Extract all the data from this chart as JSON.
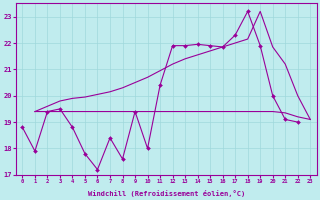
{
  "xlabel": "Windchill (Refroidissement éolien,°C)",
  "xlim": [
    -0.5,
    23.5
  ],
  "ylim": [
    17,
    23.5
  ],
  "yticks": [
    17,
    18,
    19,
    20,
    21,
    22,
    23
  ],
  "xticks": [
    0,
    1,
    2,
    3,
    4,
    5,
    6,
    7,
    8,
    9,
    10,
    11,
    12,
    13,
    14,
    15,
    16,
    17,
    18,
    19,
    20,
    21,
    22,
    23
  ],
  "bg_color": "#c0ecee",
  "grid_color": "#a0d8dc",
  "line_color": "#990099",
  "line1_x": [
    0,
    1,
    2,
    3,
    4,
    5,
    6,
    7,
    8,
    9,
    10,
    11,
    12,
    13,
    14,
    15,
    16,
    17,
    18,
    19,
    20,
    21,
    22
  ],
  "line1_y": [
    18.8,
    17.9,
    19.4,
    19.5,
    18.8,
    17.8,
    17.2,
    18.4,
    17.6,
    19.4,
    18.0,
    20.4,
    21.9,
    21.9,
    21.95,
    21.9,
    21.85,
    22.3,
    23.2,
    21.9,
    20.0,
    19.1,
    19.0
  ],
  "line2_x": [
    1,
    3,
    4,
    5,
    6,
    7,
    8,
    9,
    10,
    11,
    12,
    13,
    14,
    15,
    16,
    17,
    18,
    19,
    20,
    21,
    22,
    23
  ],
  "line2_y": [
    19.4,
    19.4,
    19.4,
    19.4,
    19.4,
    19.4,
    19.4,
    19.4,
    19.4,
    19.4,
    19.4,
    19.4,
    19.4,
    19.4,
    19.4,
    19.4,
    19.4,
    19.4,
    19.4,
    19.35,
    19.2,
    19.1
  ],
  "line3_x": [
    1,
    2,
    3,
    4,
    5,
    6,
    7,
    8,
    9,
    10,
    11,
    12,
    13,
    14,
    15,
    16,
    17,
    18,
    19,
    20,
    21,
    22,
    23
  ],
  "line3_y": [
    19.4,
    19.6,
    19.8,
    19.9,
    19.95,
    20.05,
    20.15,
    20.3,
    20.5,
    20.7,
    20.95,
    21.2,
    21.4,
    21.55,
    21.7,
    21.85,
    22.0,
    22.15,
    23.2,
    21.85,
    21.2,
    20.0,
    19.1
  ]
}
